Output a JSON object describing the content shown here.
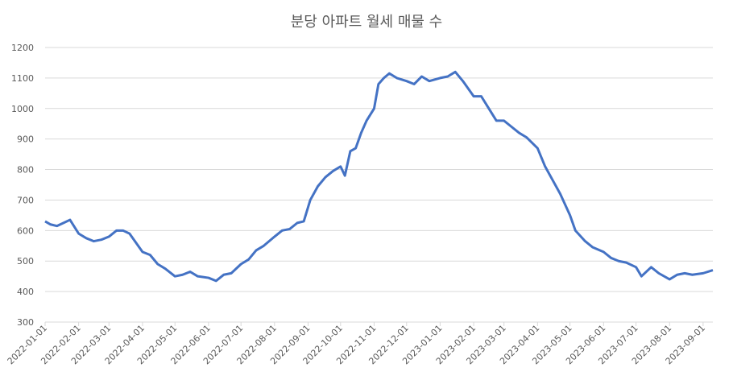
{
  "chart_data": {
    "type": "line",
    "title": "분당 아파트 월세 매물 수",
    "x": [
      "2022-01-01",
      "2022-01-06",
      "2022-01-12",
      "2022-01-18",
      "2022-01-24",
      "2022-02-01",
      "2022-02-08",
      "2022-02-15",
      "2022-02-22",
      "2022-03-01",
      "2022-03-08",
      "2022-03-14",
      "2022-03-20",
      "2022-03-26",
      "2022-04-01",
      "2022-04-08",
      "2022-04-15",
      "2022-04-22",
      "2022-05-01",
      "2022-05-08",
      "2022-05-15",
      "2022-05-22",
      "2022-06-01",
      "2022-06-08",
      "2022-06-15",
      "2022-06-22",
      "2022-07-01",
      "2022-07-08",
      "2022-07-15",
      "2022-07-22",
      "2022-08-01",
      "2022-08-08",
      "2022-08-15",
      "2022-08-22",
      "2022-08-28",
      "2022-09-03",
      "2022-09-10",
      "2022-09-17",
      "2022-09-24",
      "2022-10-01",
      "2022-10-05",
      "2022-10-10",
      "2022-10-15",
      "2022-10-20",
      "2022-10-25",
      "2022-11-01",
      "2022-11-05",
      "2022-11-10",
      "2022-11-15",
      "2022-11-22",
      "2022-12-01",
      "2022-12-08",
      "2022-12-15",
      "2022-12-22",
      "2023-01-01",
      "2023-01-08",
      "2023-01-15",
      "2023-01-22",
      "2023-02-01",
      "2023-02-08",
      "2023-02-15",
      "2023-02-22",
      "2023-03-01",
      "2023-03-08",
      "2023-03-15",
      "2023-03-22",
      "2023-04-01",
      "2023-04-08",
      "2023-04-15",
      "2023-04-22",
      "2023-05-01",
      "2023-05-06",
      "2023-05-15",
      "2023-05-22",
      "2023-06-01",
      "2023-06-08",
      "2023-06-15",
      "2023-06-22",
      "2023-07-01",
      "2023-07-06",
      "2023-07-15",
      "2023-07-22",
      "2023-08-01",
      "2023-08-08",
      "2023-08-15",
      "2023-08-22",
      "2023-09-01",
      "2023-09-10"
    ],
    "series": [
      {
        "name": "분당 아파트 월세 매물 수",
        "color": "#4472c4",
        "values": [
          630,
          620,
          615,
          625,
          635,
          590,
          575,
          565,
          570,
          580,
          600,
          600,
          590,
          560,
          530,
          520,
          490,
          475,
          450,
          455,
          465,
          450,
          445,
          435,
          455,
          460,
          490,
          505,
          535,
          550,
          580,
          600,
          605,
          625,
          630,
          700,
          745,
          775,
          795,
          810,
          780,
          860,
          870,
          920,
          960,
          1000,
          1080,
          1100,
          1115,
          1100,
          1090,
          1080,
          1105,
          1090,
          1100,
          1105,
          1120,
          1090,
          1040,
          1040,
          1000,
          960,
          960,
          940,
          920,
          905,
          870,
          810,
          765,
          720,
          650,
          600,
          565,
          545,
          530,
          510,
          500,
          495,
          480,
          450,
          480,
          460,
          440,
          455,
          460,
          455,
          460,
          470
        ]
      }
    ],
    "xlim": [
      "2022-01-01",
      "2023-09-10"
    ],
    "xticks": [
      "2022-01-01",
      "2022-02-01",
      "2022-03-01",
      "2022-04-01",
      "2022-05-01",
      "2022-06-01",
      "2022-07-01",
      "2022-08-01",
      "2022-09-01",
      "2022-10-01",
      "2022-11-01",
      "2022-12-01",
      "2023-01-01",
      "2023-02-01",
      "2023-03-01",
      "2023-04-01",
      "2023-05-01",
      "2023-06-01",
      "2023-07-01",
      "2023-08-01",
      "2023-09-01"
    ],
    "ylim": [
      300,
      1200
    ],
    "yticks": [
      300,
      400,
      500,
      600,
      700,
      800,
      900,
      1000,
      1100,
      1200
    ],
    "grid": true
  }
}
